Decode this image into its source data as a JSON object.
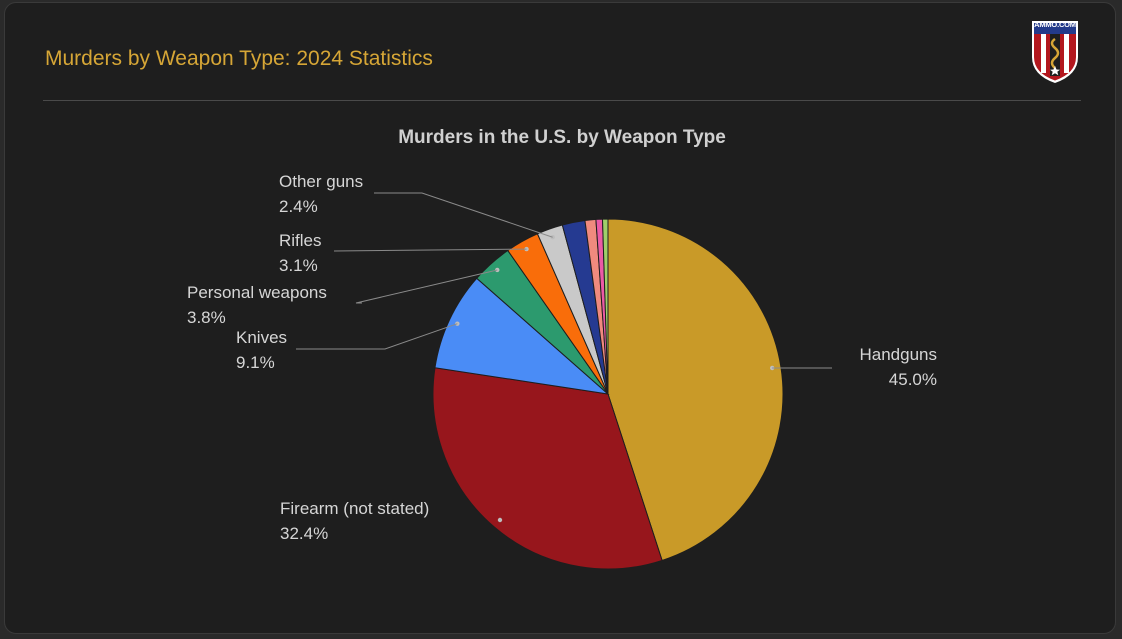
{
  "header": {
    "title": "Murders by Weapon Type: 2024 Statistics",
    "logo_text": "AMMO.COM"
  },
  "colors": {
    "background": "#1e1e1e",
    "header_title": "#d6a636",
    "divider": "#4a4a4a"
  },
  "chart_data": {
    "type": "pie",
    "title": "Murders in the U.S. by Weapon Type",
    "slices": [
      {
        "name": "Handguns",
        "value": 45.0,
        "display": "45.0%",
        "color": "#c99a28",
        "labeled": true
      },
      {
        "name": "Firearm (not stated)",
        "value": 32.4,
        "display": "32.4%",
        "color": "#97161c",
        "labeled": true
      },
      {
        "name": "Knives",
        "value": 9.1,
        "display": "9.1%",
        "color": "#4a8cf6",
        "labeled": true
      },
      {
        "name": "Personal weapons",
        "value": 3.8,
        "display": "3.8%",
        "color": "#2c9a6e",
        "labeled": true
      },
      {
        "name": "Rifles",
        "value": 3.1,
        "display": "3.1%",
        "color": "#f96d0a",
        "labeled": true
      },
      {
        "name": "Other guns",
        "value": 2.4,
        "display": "2.4%",
        "color": "#c9c9c9",
        "labeled": true
      },
      {
        "name": "",
        "value": 2.1,
        "display": "",
        "color": "#253a91",
        "labeled": false
      },
      {
        "name": "",
        "value": 1.0,
        "display": "",
        "color": "#f08a7e",
        "labeled": false
      },
      {
        "name": "",
        "value": 0.6,
        "display": "",
        "color": "#eb5aa6",
        "labeled": false
      },
      {
        "name": "",
        "value": 0.5,
        "display": "",
        "color": "#9fcf6a",
        "labeled": false
      }
    ]
  }
}
